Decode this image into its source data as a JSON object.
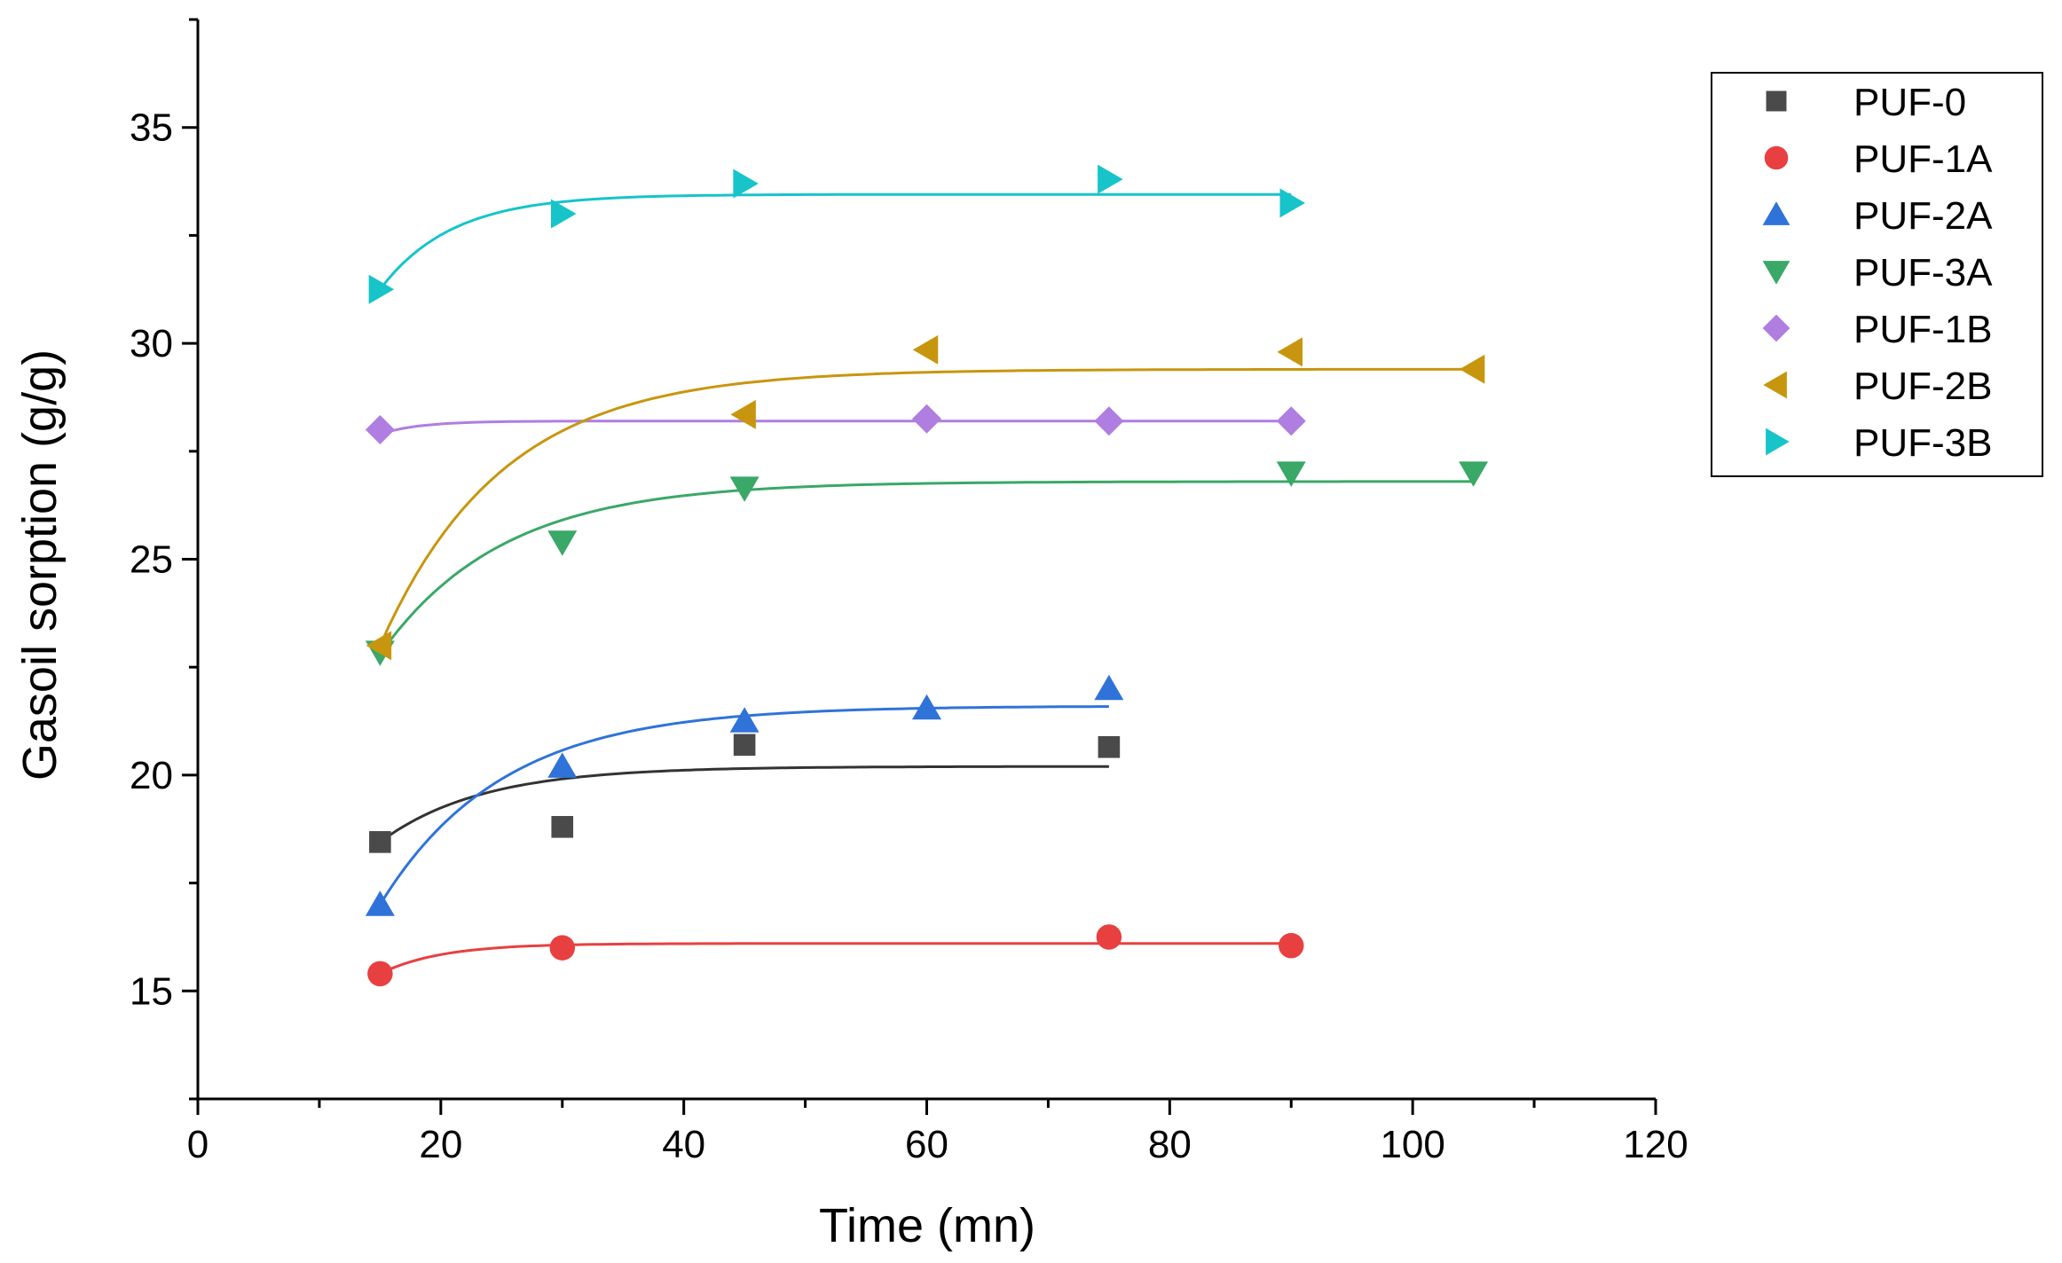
{
  "chart_data": {
    "type": "scatter",
    "title": "",
    "xlabel": "Time (mn)",
    "ylabel": "Gasoil sorption (g/g)",
    "xlim": [
      0,
      120
    ],
    "ylim": [
      12.5,
      37.5
    ],
    "xticks": [
      0,
      20,
      40,
      60,
      80,
      100,
      120
    ],
    "yticks": [
      15,
      20,
      25,
      30,
      35
    ],
    "x_minor_step": 10,
    "y_minor_step": 2.5,
    "grid": false,
    "legend_position": "top-right",
    "series": [
      {
        "name": "PUF-0",
        "marker": "square",
        "color": "#4a4a4a",
        "fit_color": "#333333",
        "x": [
          15,
          30,
          45,
          75
        ],
        "y": [
          18.45,
          18.8,
          20.7,
          20.65
        ],
        "fit": {
          "a": 20.2,
          "b": 1.75,
          "k": 0.12,
          "x_start": 15,
          "x_end": 75
        }
      },
      {
        "name": "PUF-1A",
        "marker": "circle",
        "color": "#e84040",
        "fit_color": "#e84040",
        "x": [
          15,
          30,
          75,
          90
        ],
        "y": [
          15.4,
          16.0,
          16.25,
          16.05
        ],
        "fit": {
          "a": 16.1,
          "b": 0.7,
          "k": 0.2,
          "x_start": 15,
          "x_end": 90
        }
      },
      {
        "name": "PUF-2A",
        "marker": "triangle-up",
        "color": "#2f73d9",
        "fit_color": "#2f73d9",
        "x": [
          15,
          30,
          45,
          60,
          75
        ],
        "y": [
          17.0,
          20.2,
          21.25,
          21.55,
          22.0
        ],
        "fit": {
          "a": 21.6,
          "b": 4.6,
          "k": 0.1,
          "x_start": 15,
          "x_end": 75
        }
      },
      {
        "name": "PUF-3A",
        "marker": "triangle-down",
        "color": "#3aa867",
        "fit_color": "#3aa867",
        "x": [
          15,
          30,
          45,
          90,
          105
        ],
        "y": [
          22.85,
          25.4,
          26.65,
          27.0,
          27.0
        ],
        "fit": {
          "a": 26.8,
          "b": 4.0,
          "k": 0.1,
          "x_start": 15,
          "x_end": 105
        }
      },
      {
        "name": "PUF-1B",
        "marker": "diamond",
        "color": "#b07de0",
        "fit_color": "#b07de0",
        "x": [
          15,
          60,
          75,
          90
        ],
        "y": [
          28.0,
          28.25,
          28.2,
          28.2
        ],
        "fit": {
          "a": 28.2,
          "b": 0.3,
          "k": 0.3,
          "x_start": 15,
          "x_end": 90
        }
      },
      {
        "name": "PUF-2B",
        "marker": "triangle-left",
        "color": "#c8960e",
        "fit_color": "#c8960e",
        "x": [
          15,
          45,
          60,
          90,
          105
        ],
        "y": [
          23.0,
          28.35,
          29.85,
          29.8,
          29.4
        ],
        "fit": {
          "a": 29.4,
          "b": 6.4,
          "k": 0.1,
          "x_start": 15,
          "x_end": 105
        }
      },
      {
        "name": "PUF-3B",
        "marker": "triangle-right",
        "color": "#16c4c9",
        "fit_color": "#16c4c9",
        "x": [
          15,
          30,
          45,
          75,
          90
        ],
        "y": [
          31.25,
          33.0,
          33.7,
          33.8,
          33.25
        ],
        "fit": {
          "a": 33.45,
          "b": 2.2,
          "k": 0.17,
          "x_start": 15,
          "x_end": 90
        }
      }
    ]
  }
}
